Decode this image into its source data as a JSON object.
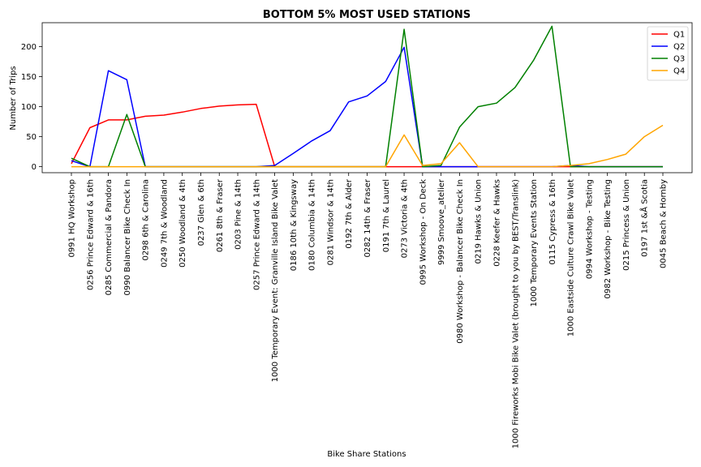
{
  "chart_data": {
    "type": "line",
    "title": "BOTTOM 5% MOST USED STATIONS",
    "xlabel": "Bike Share Stations",
    "ylabel": "Number of Trips",
    "ylim": [
      -10,
      240
    ],
    "yticks": [
      0,
      50,
      100,
      150,
      200
    ],
    "grid": false,
    "legend_position": "top-right",
    "categories": [
      "0991 HQ Workshop",
      "0256 Prince Edward & 16th",
      "0285 Commercial & Pandora",
      "0990 Balancer Bike Check In",
      "0298 6th & Carolina",
      "0249 7th & Woodland",
      "0250 Woodland & 4th",
      "0237 Glen & 6th",
      "0261 8th & Fraser",
      "0203 Pine & 14th",
      "0257 Prince Edward & 14th",
      "1000 Temporary Event: Granville Island Bike Valet",
      "0186 10th & Kingsway",
      "0180 Columbia & 14th",
      "0281 Windsor & 14th",
      "0192 7th &  Alder",
      "0282 14th & Fraser",
      "0191 7th & Laurel",
      "0273 Victoria & 4th",
      "0995 Workshop - On Deck",
      "9999 Smoove_atelier",
      "0980 Workshop - Balancer Bike Check In",
      "0219 Hawks & Union",
      "0228 Keefer & Hawks",
      "1000 Fireworks Mobi Bike Valet (brought to you by BEST/Translink)",
      "1000 Temporary Events Station",
      "0115 Cypress & 16th",
      "1000 Eastside Culture Crawl Bike Valet",
      "0994 Workshop - Testing",
      "0982 Workshop - Bike Testing",
      "0215 Princess & Union",
      "0197 1st &Å Scotia",
      "0045 Beach & Hornby"
    ],
    "series": [
      {
        "name": "Q1",
        "color": "#ff0000",
        "values": [
          5,
          65,
          78,
          78,
          84,
          86,
          91,
          97,
          101,
          103,
          104,
          0,
          0,
          0,
          0,
          0,
          0,
          0,
          0,
          0,
          0,
          0,
          0,
          0,
          0,
          0,
          0,
          0,
          0,
          0,
          0,
          0,
          0
        ]
      },
      {
        "name": "Q2",
        "color": "#0000ff",
        "values": [
          10,
          0,
          160,
          145,
          0,
          0,
          0,
          0,
          0,
          0,
          0,
          2,
          22,
          43,
          60,
          108,
          118,
          142,
          199,
          0,
          0,
          0,
          0,
          0,
          0,
          0,
          0,
          2,
          0,
          0,
          0,
          0,
          0
        ]
      },
      {
        "name": "Q3",
        "color": "#008000",
        "values": [
          14,
          0,
          0,
          87,
          0,
          0,
          0,
          0,
          0,
          0,
          0,
          0,
          0,
          0,
          0,
          0,
          0,
          0,
          229,
          0,
          2,
          66,
          100,
          106,
          132,
          177,
          234,
          0,
          0,
          0,
          0,
          0,
          0
        ]
      },
      {
        "name": "Q4",
        "color": "#ffa500",
        "values": [
          0,
          0,
          0,
          0,
          0,
          0,
          0,
          0,
          0,
          0,
          0,
          0,
          0,
          0,
          0,
          0,
          0,
          0,
          53,
          2,
          5,
          40,
          0,
          0,
          0,
          0,
          0,
          2,
          5,
          12,
          21,
          50,
          69
        ]
      }
    ]
  }
}
